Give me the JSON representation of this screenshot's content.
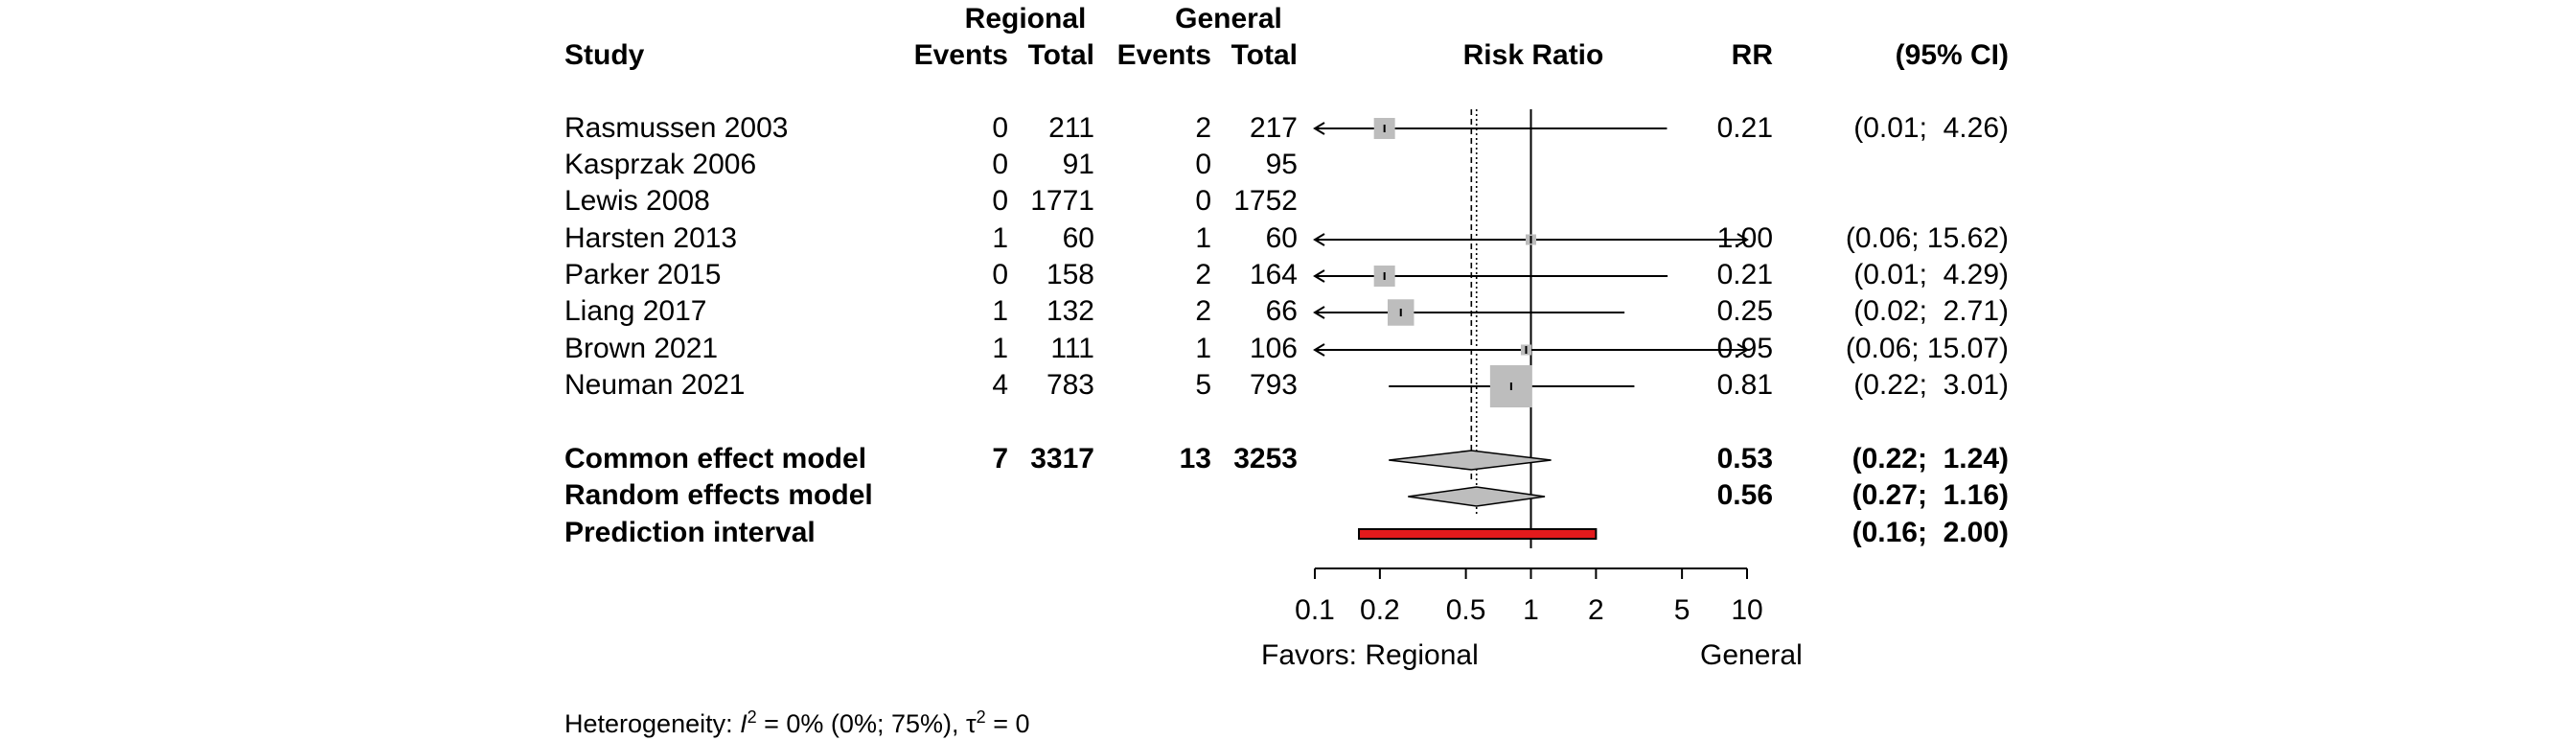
{
  "headers": {
    "study": "Study",
    "regional": "Regional",
    "general": "General",
    "events": "Events",
    "total": "Total",
    "risk_ratio": "Risk Ratio",
    "rr": "RR",
    "ci": "(95% CI)"
  },
  "studies": [
    {
      "name": "Rasmussen 2003",
      "r_events": "0",
      "r_total": "211",
      "g_events": "2",
      "g_total": "217",
      "rr_text": "0.21",
      "ci_text": "(0.01;  4.26)"
    },
    {
      "name": "Kasprzak 2006",
      "r_events": "0",
      "r_total": "91",
      "g_events": "0",
      "g_total": "95",
      "rr_text": "",
      "ci_text": ""
    },
    {
      "name": "Lewis 2008",
      "r_events": "0",
      "r_total": "1771",
      "g_events": "0",
      "g_total": "1752",
      "rr_text": "",
      "ci_text": ""
    },
    {
      "name": "Harsten 2013",
      "r_events": "1",
      "r_total": "60",
      "g_events": "1",
      "g_total": "60",
      "rr_text": "1.00",
      "ci_text": "(0.06; 15.62)"
    },
    {
      "name": "Parker 2015",
      "r_events": "0",
      "r_total": "158",
      "g_events": "2",
      "g_total": "164",
      "rr_text": "0.21",
      "ci_text": "(0.01;  4.29)"
    },
    {
      "name": "Liang 2017",
      "r_events": "1",
      "r_total": "132",
      "g_events": "2",
      "g_total": "66",
      "rr_text": "0.25",
      "ci_text": "(0.02;  2.71)"
    },
    {
      "name": "Brown 2021",
      "r_events": "1",
      "r_total": "111",
      "g_events": "1",
      "g_total": "106",
      "rr_text": "0.95",
      "ci_text": "(0.06; 15.07)"
    },
    {
      "name": "Neuman 2021",
      "r_events": "4",
      "r_total": "783",
      "g_events": "5",
      "g_total": "793",
      "rr_text": "0.81",
      "ci_text": "(0.22;  3.01)"
    }
  ],
  "summaries": [
    {
      "name": "Common effect model",
      "r_events": "7",
      "r_total": "3317",
      "g_events": "13",
      "g_total": "3253",
      "rr_text": "0.53",
      "ci_text": "(0.22;  1.24)"
    },
    {
      "name": "Random effects model",
      "r_events": "",
      "r_total": "",
      "g_events": "",
      "g_total": "",
      "rr_text": "0.56",
      "ci_text": "(0.27;  1.16)"
    },
    {
      "name": "Prediction interval",
      "r_events": "",
      "r_total": "",
      "g_events": "",
      "g_total": "",
      "rr_text": "",
      "ci_text": "(0.16;  2.00)"
    }
  ],
  "favors_left": "Favors: Regional",
  "favors_right": "General",
  "heterogeneity": {
    "prefix": "Heterogeneity: ",
    "i2_value": " = 0% (0%; 75%), ",
    "tau2_value": " = 0"
  },
  "colors": {
    "square": "#bdbdbd",
    "diamond": "#bdbdbd",
    "prediction": "#e31a1c"
  },
  "chart_data": {
    "type": "forest",
    "x_scale": "log",
    "xlim": [
      0.1,
      10
    ],
    "xticks": [
      0.1,
      0.2,
      0.5,
      1,
      2,
      5,
      10
    ],
    "xtick_labels": [
      "0.1",
      "0.2",
      "0.5",
      "1",
      "2",
      "5",
      "10"
    ],
    "reference_line": 1,
    "common_effect_line": 0.53,
    "random_effect_line": 0.56,
    "studies": [
      {
        "label": "Rasmussen 2003",
        "rr": 0.21,
        "lower": 0.01,
        "upper": 4.26,
        "weight": 2
      },
      {
        "label": "Kasprzak 2006",
        "rr": null,
        "lower": null,
        "upper": null,
        "weight": 0
      },
      {
        "label": "Lewis 2008",
        "rr": null,
        "lower": null,
        "upper": null,
        "weight": 0
      },
      {
        "label": "Harsten 2013",
        "rr": 1.0,
        "lower": 0.06,
        "upper": 15.62,
        "weight": 1
      },
      {
        "label": "Parker 2015",
        "rr": 0.21,
        "lower": 0.01,
        "upper": 4.29,
        "weight": 2
      },
      {
        "label": "Liang 2017",
        "rr": 0.25,
        "lower": 0.02,
        "upper": 2.71,
        "weight": 2.5
      },
      {
        "label": "Brown 2021",
        "rr": 0.95,
        "lower": 0.06,
        "upper": 15.07,
        "weight": 1
      },
      {
        "label": "Neuman 2021",
        "rr": 0.81,
        "lower": 0.22,
        "upper": 3.01,
        "weight": 4
      }
    ],
    "common_effect": {
      "rr": 0.53,
      "lower": 0.22,
      "upper": 1.24
    },
    "random_effects": {
      "rr": 0.56,
      "lower": 0.27,
      "upper": 1.16
    },
    "prediction_interval": {
      "lower": 0.16,
      "upper": 2.0
    }
  }
}
